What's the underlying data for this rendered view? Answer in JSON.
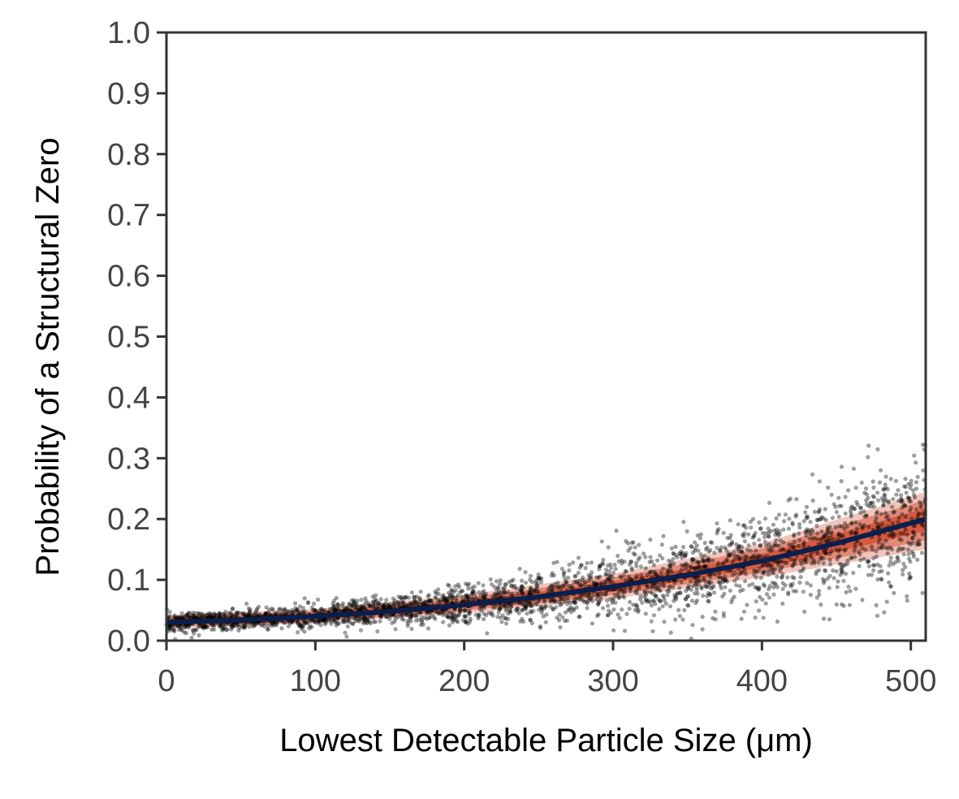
{
  "chart_data": {
    "type": "scatter",
    "title": "",
    "xlabel": "Lowest Detectable Particle Size (μm)",
    "ylabel": "Probability of a Structural Zero",
    "xlim": [
      0,
      510
    ],
    "ylim": [
      0,
      1.0
    ],
    "x_ticks": [
      0,
      100,
      200,
      300,
      400,
      500
    ],
    "x_tick_labels": [
      "0",
      "100",
      "200",
      "300",
      "400",
      "500"
    ],
    "y_ticks": [
      0.0,
      0.1,
      0.2,
      0.3,
      0.4,
      0.5,
      0.6,
      0.7,
      0.8,
      0.9,
      1.0
    ],
    "y_tick_labels": [
      "0.0",
      "0.1",
      "0.2",
      "0.3",
      "0.4",
      "0.5",
      "0.6",
      "0.7",
      "0.8",
      "0.9",
      "1.0"
    ],
    "grid": false,
    "legend": "none",
    "mean_curve": {
      "x": [
        0,
        50,
        100,
        150,
        200,
        250,
        300,
        350,
        400,
        450,
        510
      ],
      "y": [
        0.03,
        0.034,
        0.04,
        0.048,
        0.059,
        0.072,
        0.089,
        0.108,
        0.131,
        0.16,
        0.2
      ]
    },
    "credible_band": {
      "x": [
        0,
        100,
        200,
        300,
        400,
        510
      ],
      "lower": [
        0.02,
        0.029,
        0.045,
        0.069,
        0.104,
        0.15
      ],
      "upper": [
        0.042,
        0.052,
        0.075,
        0.11,
        0.16,
        0.245
      ]
    },
    "scatter_note_values": {
      "n_points": 3000
    },
    "colors": {
      "mean_line": "#0a1f4d",
      "band": "#cc2f0f",
      "points": "#000000",
      "axis": "#333333",
      "tick_text": "#444444"
    }
  }
}
